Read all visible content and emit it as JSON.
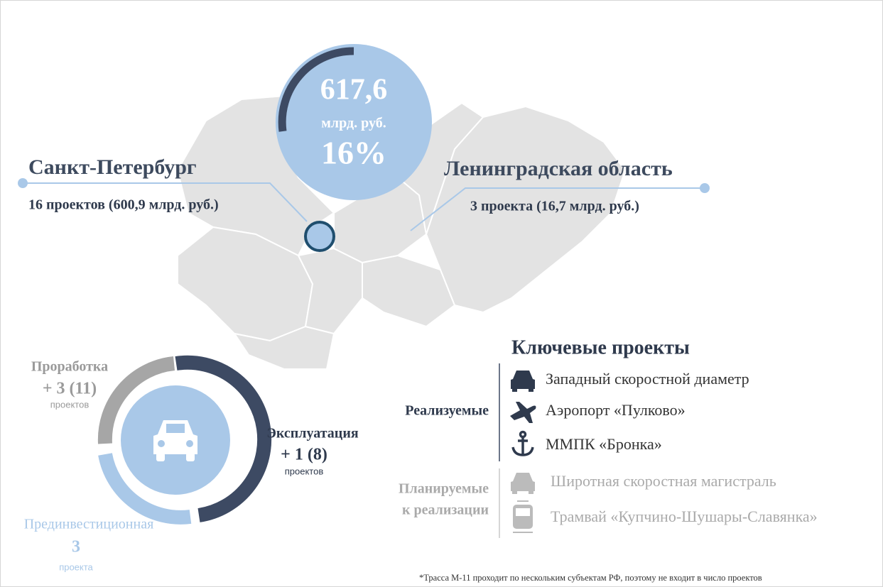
{
  "total": {
    "value": "617,6",
    "unit": "млрд. руб.",
    "share": "16%"
  },
  "regions": [
    {
      "name": "Санкт-Петербург",
      "detail": "16 проектов (600,9 млрд. руб.)"
    },
    {
      "name": "Ленинградская область",
      "detail": "3 проекта (16,7 млрд. руб.)"
    }
  ],
  "stages": [
    {
      "name": "Проработка",
      "count": "+ 3 (11)",
      "unit": "проектов"
    },
    {
      "name": "Эксплуатация",
      "count": "+ 1 (8)",
      "unit": "проектов"
    },
    {
      "name": "Прединвестиционная",
      "count": "3",
      "unit": "проекта"
    }
  ],
  "key_projects": {
    "title": "Ключевые проекты",
    "groups": [
      {
        "label_lines": [
          "Реализуемые"
        ],
        "items": [
          "Западный скоростной диаметр",
          "Аэропорт «Пулково»",
          "ММПК «Бронка»"
        ]
      },
      {
        "label_lines": [
          "Планируемые",
          "к реализации"
        ],
        "items": [
          "Широтная скоростная магистраль",
          "Трамвай «Купчино-Шушары-Славянка»"
        ]
      }
    ]
  },
  "footnote": "*Трасса М-11 проходит по нескольким субъектам РФ, поэтому не входит в  число проектов"
}
